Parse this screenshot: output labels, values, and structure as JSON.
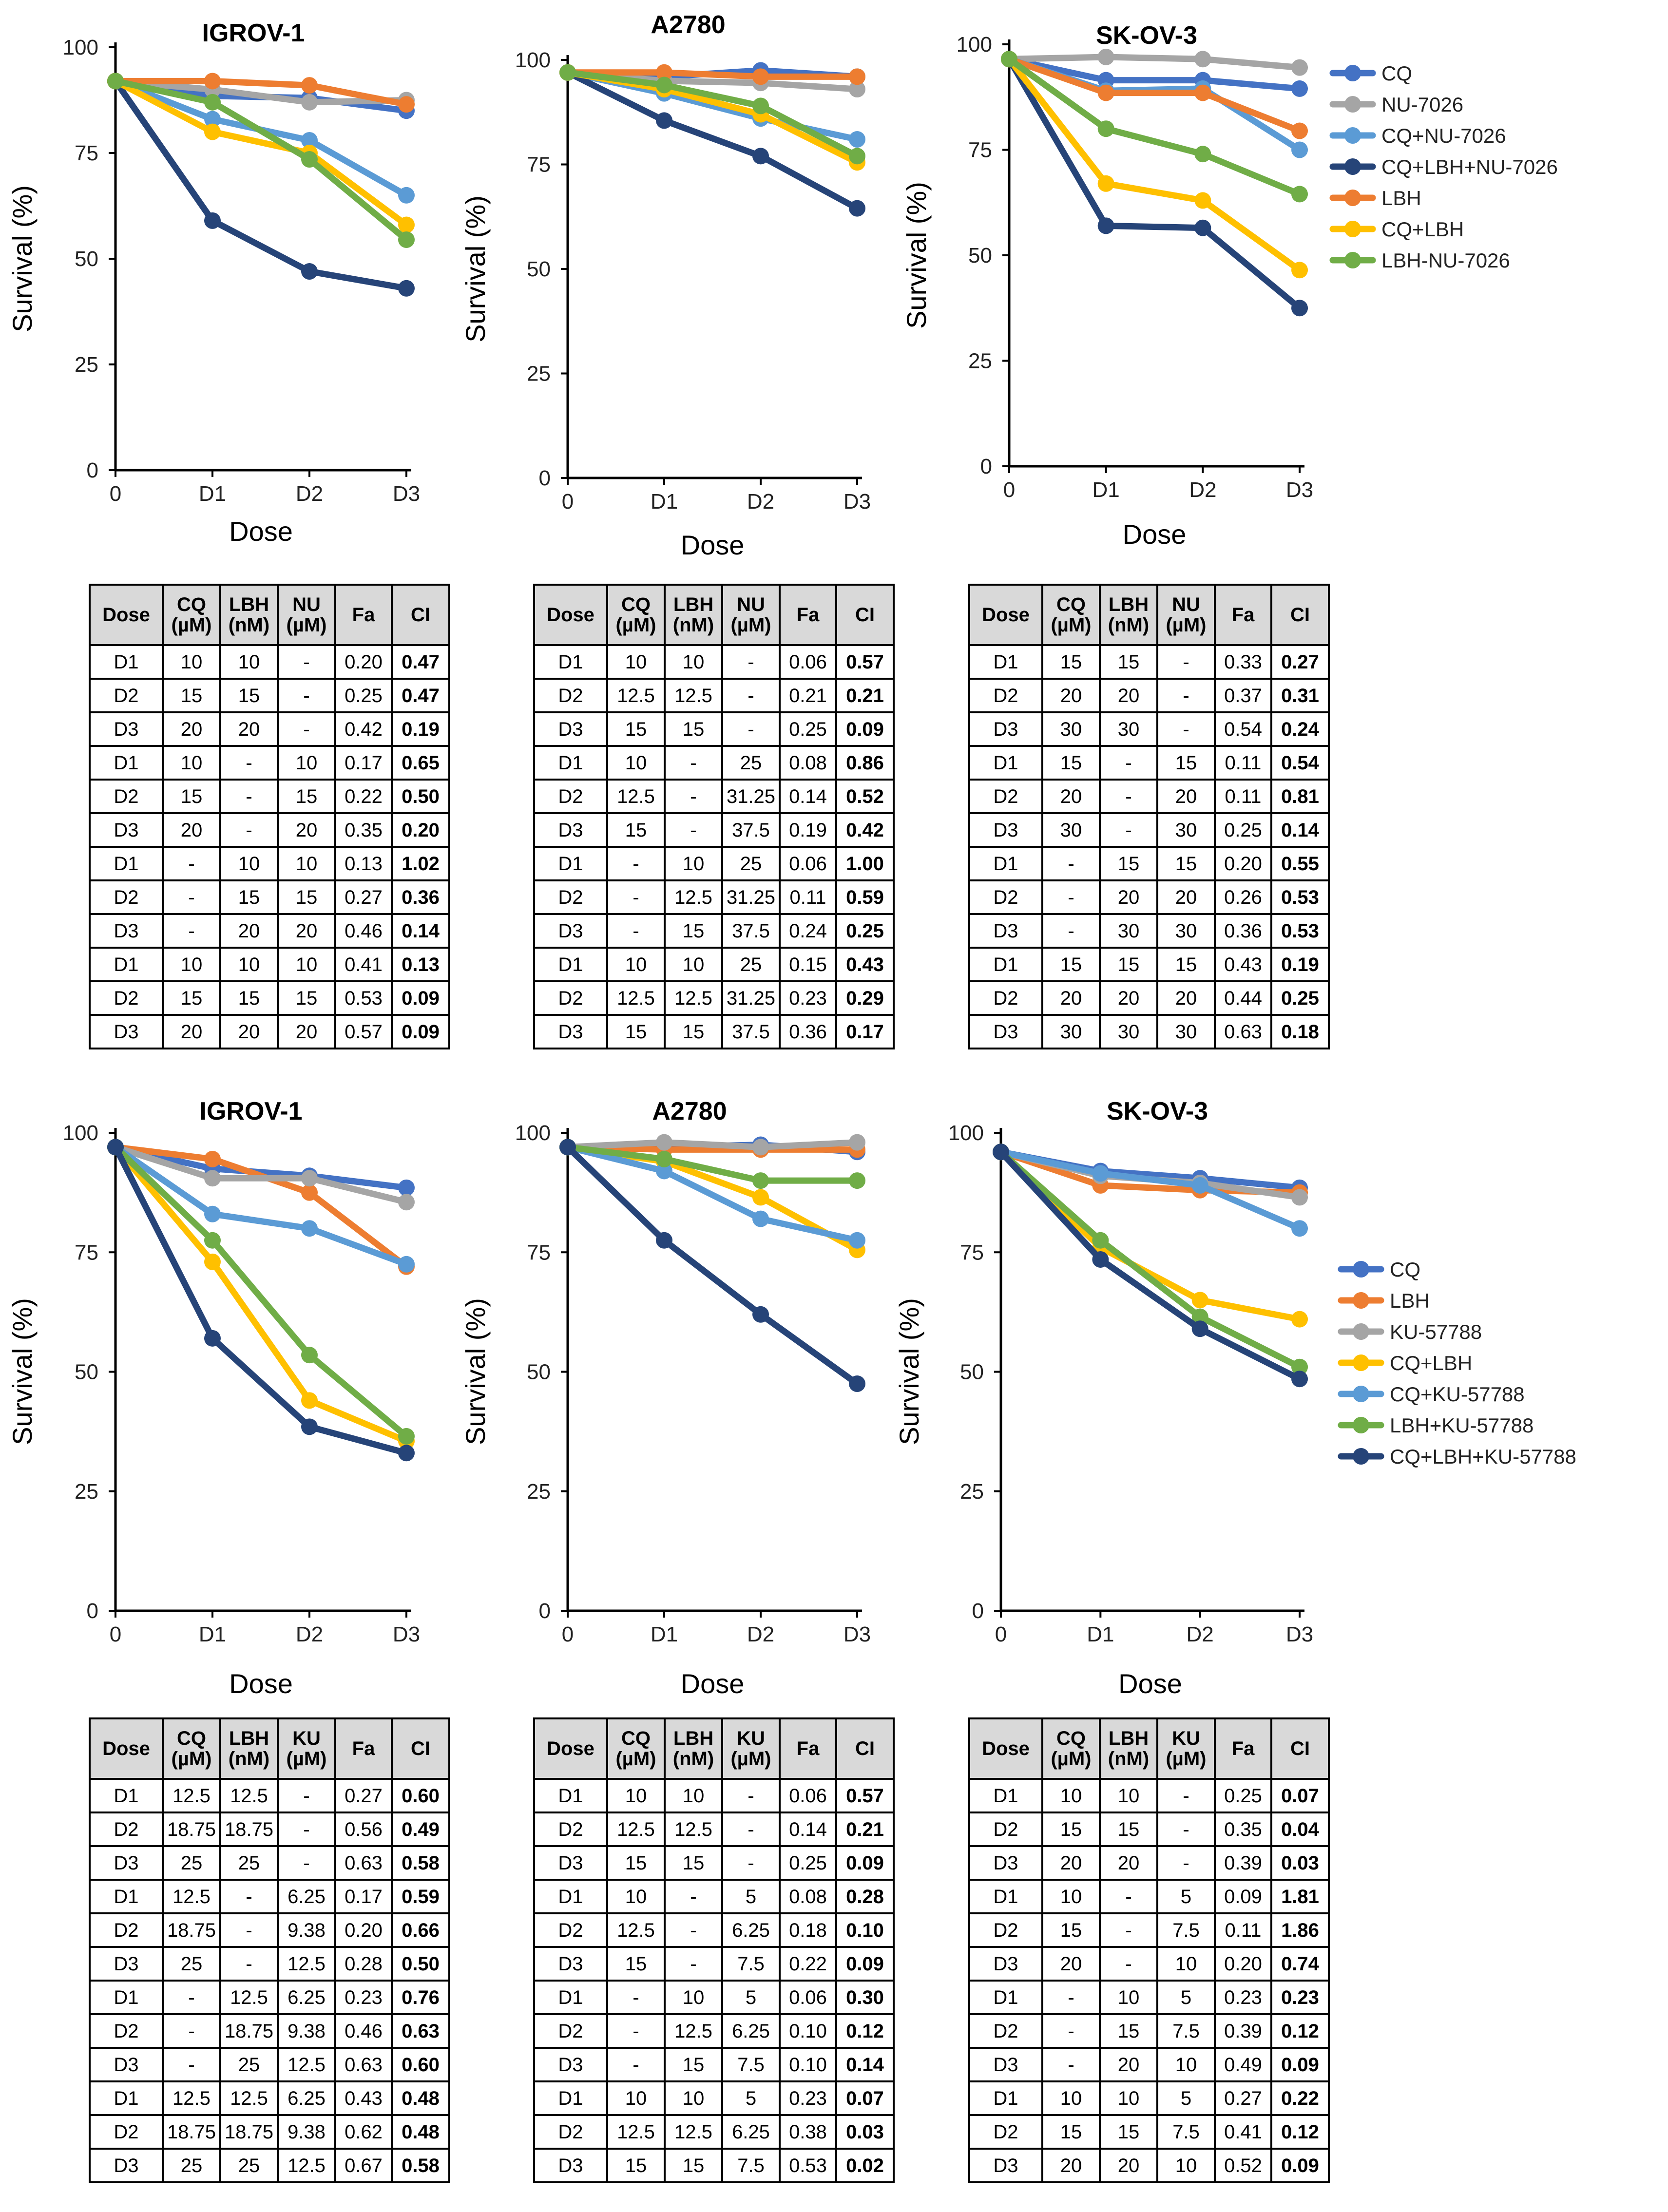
{
  "chart_data": [
    {
      "type": "line",
      "title": "IGROV-1",
      "xlabel": "Dose",
      "ylabel": "Survival (%)",
      "categories": [
        "0",
        "D1",
        "D2",
        "D3"
      ],
      "ylim": [
        0,
        100
      ],
      "yticks": [
        "0",
        "25",
        "50",
        "75",
        "100"
      ],
      "series": [
        {
          "name": "CQ",
          "color": "#4472C4",
          "values": [
            92,
            88.5,
            88,
            85
          ]
        },
        {
          "name": "NU-7026",
          "color": "#A5A5A5",
          "values": [
            92,
            90,
            87,
            87.5
          ]
        },
        {
          "name": "CQ+NU-7026",
          "color": "#5B9BD5",
          "values": [
            92,
            83,
            78,
            65
          ]
        },
        {
          "name": "CQ+LBH+NU-7026",
          "color": "#264478",
          "values": [
            92,
            59,
            47,
            43
          ]
        },
        {
          "name": "LBH",
          "color": "#ED7D31",
          "values": [
            92,
            92,
            91,
            86.5
          ]
        },
        {
          "name": "CQ+LBH",
          "color": "#FFC000",
          "values": [
            92,
            80,
            75,
            58
          ]
        },
        {
          "name": "LBH-NU-7026",
          "color": "#70AD47",
          "values": [
            92,
            87,
            73.5,
            54.5
          ]
        }
      ]
    },
    {
      "type": "line",
      "title": "A2780",
      "xlabel": "Dose",
      "ylabel": "Survival (%)",
      "categories": [
        "0",
        "D1",
        "D2",
        "D3"
      ],
      "ylim": [
        0,
        100
      ],
      "yticks": [
        "0",
        "25",
        "50",
        "75",
        "100"
      ],
      "series": [
        {
          "name": "CQ",
          "color": "#4472C4",
          "values": [
            97,
            96,
            97.5,
            96
          ]
        },
        {
          "name": "NU-7026",
          "color": "#A5A5A5",
          "values": [
            97,
            95,
            94.5,
            93
          ]
        },
        {
          "name": "CQ+NU-7026",
          "color": "#5B9BD5",
          "values": [
            97,
            92,
            86,
            81
          ]
        },
        {
          "name": "CQ+LBH+NU-7026",
          "color": "#264478",
          "values": [
            97,
            85.5,
            77,
            64.5
          ]
        },
        {
          "name": "LBH",
          "color": "#ED7D31",
          "values": [
            97,
            97,
            96,
            96
          ]
        },
        {
          "name": "CQ+LBH",
          "color": "#FFC000",
          "values": [
            97,
            93,
            87,
            75.5
          ]
        },
        {
          "name": "LBH-NU-7026",
          "color": "#70AD47",
          "values": [
            97,
            94,
            89,
            77
          ]
        }
      ]
    },
    {
      "type": "line",
      "title": "SK-OV-3",
      "xlabel": "Dose",
      "ylabel": "Survival (%)",
      "categories": [
        "0",
        "D1",
        "D2",
        "D3"
      ],
      "ylim": [
        0,
        100
      ],
      "yticks": [
        "0",
        "25",
        "50",
        "75",
        "100"
      ],
      "legend": "right",
      "series": [
        {
          "name": "CQ",
          "color": "#4472C4",
          "values": [
            96.5,
            91.5,
            91.5,
            89.5
          ]
        },
        {
          "name": "NU-7026",
          "color": "#A5A5A5",
          "values": [
            96.5,
            97,
            96.5,
            94.5
          ]
        },
        {
          "name": "CQ+NU-7026",
          "color": "#5B9BD5",
          "values": [
            96.5,
            89,
            89.5,
            75
          ]
        },
        {
          "name": "CQ+LBH+NU-7026",
          "color": "#264478",
          "values": [
            96.5,
            57,
            56.5,
            37.5
          ]
        },
        {
          "name": "LBH",
          "color": "#ED7D31",
          "values": [
            96.5,
            88.5,
            88.5,
            79.5
          ]
        },
        {
          "name": "CQ+LBH",
          "color": "#FFC000",
          "values": [
            96.5,
            67,
            63,
            46.5
          ]
        },
        {
          "name": "LBH-NU-7026",
          "color": "#70AD47",
          "values": [
            96.5,
            80,
            74,
            64.5
          ]
        }
      ]
    },
    {
      "type": "line",
      "title": "IGROV-1",
      "xlabel": "Dose",
      "ylabel": "Survival (%)",
      "categories": [
        "0",
        "D1",
        "D2",
        "D3"
      ],
      "ylim": [
        0,
        100
      ],
      "yticks": [
        "0",
        "25",
        "50",
        "75",
        "100"
      ],
      "series": [
        {
          "name": "CQ",
          "color": "#4472C4",
          "values": [
            97,
            92.5,
            91,
            88.5
          ]
        },
        {
          "name": "LBH",
          "color": "#ED7D31",
          "values": [
            97,
            94.5,
            87.5,
            72
          ]
        },
        {
          "name": "KU-57788",
          "color": "#A5A5A5",
          "values": [
            97,
            90.5,
            90.5,
            85.5
          ]
        },
        {
          "name": "CQ+LBH",
          "color": "#FFC000",
          "values": [
            97,
            73,
            44,
            35.5
          ]
        },
        {
          "name": "CQ+KU-57788",
          "color": "#5B9BD5",
          "values": [
            97,
            83,
            80,
            72.5
          ]
        },
        {
          "name": "LBH+KU-57788",
          "color": "#70AD47",
          "values": [
            97,
            77.5,
            53.5,
            36.5
          ]
        },
        {
          "name": "CQ+LBH+KU-57788",
          "color": "#264478",
          "values": [
            97,
            57,
            38.5,
            33
          ]
        }
      ]
    },
    {
      "type": "line",
      "title": "A2780",
      "xlabel": "Dose",
      "ylabel": "Survival (%)",
      "categories": [
        "0",
        "D1",
        "D2",
        "D3"
      ],
      "ylim": [
        0,
        100
      ],
      "yticks": [
        "0",
        "25",
        "50",
        "75",
        "100"
      ],
      "series": [
        {
          "name": "CQ",
          "color": "#4472C4",
          "values": [
            97,
            97,
            97.5,
            96
          ]
        },
        {
          "name": "LBH",
          "color": "#ED7D31",
          "values": [
            97,
            96.5,
            96.5,
            96.5
          ]
        },
        {
          "name": "KU-57788",
          "color": "#A5A5A5",
          "values": [
            97,
            98,
            97,
            98
          ]
        },
        {
          "name": "CQ+LBH",
          "color": "#FFC000",
          "values": [
            97,
            94,
            86.5,
            75.5
          ]
        },
        {
          "name": "CQ+KU-57788",
          "color": "#5B9BD5",
          "values": [
            97,
            92,
            82,
            77.5
          ]
        },
        {
          "name": "LBH+KU-57788",
          "color": "#70AD47",
          "values": [
            97,
            94.5,
            90,
            90
          ]
        },
        {
          "name": "CQ+LBH+KU-57788",
          "color": "#264478",
          "values": [
            97,
            77.5,
            62,
            47.5
          ]
        }
      ]
    },
    {
      "type": "line",
      "title": "SK-OV-3",
      "xlabel": "Dose",
      "ylabel": "Survival (%)",
      "categories": [
        "0",
        "D1",
        "D2",
        "D3"
      ],
      "ylim": [
        0,
        100
      ],
      "yticks": [
        "0",
        "25",
        "50",
        "75",
        "100"
      ],
      "legend": "right",
      "series": [
        {
          "name": "CQ",
          "color": "#4472C4",
          "values": [
            96,
            92,
            90.5,
            88.5
          ]
        },
        {
          "name": "LBH",
          "color": "#ED7D31",
          "values": [
            96,
            89,
            88,
            87.5
          ]
        },
        {
          "name": "KU-57788",
          "color": "#A5A5A5",
          "values": [
            96,
            91,
            89.5,
            86.5
          ]
        },
        {
          "name": "CQ+LBH",
          "color": "#FFC000",
          "values": [
            96,
            76,
            65,
            61
          ]
        },
        {
          "name": "CQ+KU-57788",
          "color": "#5B9BD5",
          "values": [
            96,
            91.5,
            89,
            80
          ]
        },
        {
          "name": "LBH+KU-57788",
          "color": "#70AD47",
          "values": [
            96,
            77.5,
            61.5,
            51
          ]
        },
        {
          "name": "CQ+LBH+KU-57788",
          "color": "#264478",
          "values": [
            96,
            73.5,
            59,
            48.5
          ]
        }
      ]
    }
  ],
  "tables": [
    {
      "headers": [
        "Dose",
        "CQ (µM)",
        "LBH (nM)",
        "NU (µM)",
        "Fa",
        "CI"
      ],
      "rows": [
        [
          "D1",
          "10",
          "10",
          "-",
          "0.20",
          "0.47"
        ],
        [
          "D2",
          "15",
          "15",
          "-",
          "0.25",
          "0.47"
        ],
        [
          "D3",
          "20",
          "20",
          "-",
          "0.42",
          "0.19"
        ],
        [
          "D1",
          "10",
          "-",
          "10",
          "0.17",
          "0.65"
        ],
        [
          "D2",
          "15",
          "-",
          "15",
          "0.22",
          "0.50"
        ],
        [
          "D3",
          "20",
          "-",
          "20",
          "0.35",
          "0.20"
        ],
        [
          "D1",
          "-",
          "10",
          "10",
          "0.13",
          "1.02"
        ],
        [
          "D2",
          "-",
          "15",
          "15",
          "0.27",
          "0.36"
        ],
        [
          "D3",
          "-",
          "20",
          "20",
          "0.46",
          "0.14"
        ],
        [
          "D1",
          "10",
          "10",
          "10",
          "0.41",
          "0.13"
        ],
        [
          "D2",
          "15",
          "15",
          "15",
          "0.53",
          "0.09"
        ],
        [
          "D3",
          "20",
          "20",
          "20",
          "0.57",
          "0.09"
        ]
      ]
    },
    {
      "headers": [
        "Dose",
        "CQ (µM)",
        "LBH (nM)",
        "NU (µM)",
        "Fa",
        "CI"
      ],
      "rows": [
        [
          "D1",
          "10",
          "10",
          "-",
          "0.06",
          "0.57"
        ],
        [
          "D2",
          "12.5",
          "12.5",
          "-",
          "0.21",
          "0.21"
        ],
        [
          "D3",
          "15",
          "15",
          "-",
          "0.25",
          "0.09"
        ],
        [
          "D1",
          "10",
          "-",
          "25",
          "0.08",
          "0.86"
        ],
        [
          "D2",
          "12.5",
          "-",
          "31.25",
          "0.14",
          "0.52"
        ],
        [
          "D3",
          "15",
          "-",
          "37.5",
          "0.19",
          "0.42"
        ],
        [
          "D1",
          "-",
          "10",
          "25",
          "0.06",
          "1.00"
        ],
        [
          "D2",
          "-",
          "12.5",
          "31.25",
          "0.11",
          "0.59"
        ],
        [
          "D3",
          "-",
          "15",
          "37.5",
          "0.24",
          "0.25"
        ],
        [
          "D1",
          "10",
          "10",
          "25",
          "0.15",
          "0.43"
        ],
        [
          "D2",
          "12.5",
          "12.5",
          "31.25",
          "0.23",
          "0.29"
        ],
        [
          "D3",
          "15",
          "15",
          "37.5",
          "0.36",
          "0.17"
        ]
      ]
    },
    {
      "headers": [
        "Dose",
        "CQ (µM)",
        "LBH (nM)",
        "NU (µM)",
        "Fa",
        "CI"
      ],
      "rows": [
        [
          "D1",
          "15",
          "15",
          "-",
          "0.33",
          "0.27"
        ],
        [
          "D2",
          "20",
          "20",
          "-",
          "0.37",
          "0.31"
        ],
        [
          "D3",
          "30",
          "30",
          "-",
          "0.54",
          "0.24"
        ],
        [
          "D1",
          "15",
          "-",
          "15",
          "0.11",
          "0.54"
        ],
        [
          "D2",
          "20",
          "-",
          "20",
          "0.11",
          "0.81"
        ],
        [
          "D3",
          "30",
          "-",
          "30",
          "0.25",
          "0.14"
        ],
        [
          "D1",
          "-",
          "15",
          "15",
          "0.20",
          "0.55"
        ],
        [
          "D2",
          "-",
          "20",
          "20",
          "0.26",
          "0.53"
        ],
        [
          "D3",
          "-",
          "30",
          "30",
          "0.36",
          "0.53"
        ],
        [
          "D1",
          "15",
          "15",
          "15",
          "0.43",
          "0.19"
        ],
        [
          "D2",
          "20",
          "20",
          "20",
          "0.44",
          "0.25"
        ],
        [
          "D3",
          "30",
          "30",
          "30",
          "0.63",
          "0.18"
        ]
      ]
    },
    {
      "headers": [
        "Dose",
        "CQ (µM)",
        "LBH (nM)",
        "KU (µM)",
        "Fa",
        "CI"
      ],
      "rows": [
        [
          "D1",
          "12.5",
          "12.5",
          "-",
          "0.27",
          "0.60"
        ],
        [
          "D2",
          "18.75",
          "18.75",
          "-",
          "0.56",
          "0.49"
        ],
        [
          "D3",
          "25",
          "25",
          "-",
          "0.63",
          "0.58"
        ],
        [
          "D1",
          "12.5",
          "-",
          "6.25",
          "0.17",
          "0.59"
        ],
        [
          "D2",
          "18.75",
          "-",
          "9.38",
          "0.20",
          "0.66"
        ],
        [
          "D3",
          "25",
          "-",
          "12.5",
          "0.28",
          "0.50"
        ],
        [
          "D1",
          "-",
          "12.5",
          "6.25",
          "0.23",
          "0.76"
        ],
        [
          "D2",
          "-",
          "18.75",
          "9.38",
          "0.46",
          "0.63"
        ],
        [
          "D3",
          "-",
          "25",
          "12.5",
          "0.63",
          "0.60"
        ],
        [
          "D1",
          "12.5",
          "12.5",
          "6.25",
          "0.43",
          "0.48"
        ],
        [
          "D2",
          "18.75",
          "18.75",
          "9.38",
          "0.62",
          "0.48"
        ],
        [
          "D3",
          "25",
          "25",
          "12.5",
          "0.67",
          "0.58"
        ]
      ]
    },
    {
      "headers": [
        "Dose",
        "CQ (µM)",
        "LBH (nM)",
        "KU (µM)",
        "Fa",
        "CI"
      ],
      "rows": [
        [
          "D1",
          "10",
          "10",
          "-",
          "0.06",
          "0.57"
        ],
        [
          "D2",
          "12.5",
          "12.5",
          "-",
          "0.14",
          "0.21"
        ],
        [
          "D3",
          "15",
          "15",
          "-",
          "0.25",
          "0.09"
        ],
        [
          "D1",
          "10",
          "-",
          "5",
          "0.08",
          "0.28"
        ],
        [
          "D2",
          "12.5",
          "-",
          "6.25",
          "0.18",
          "0.10"
        ],
        [
          "D3",
          "15",
          "-",
          "7.5",
          "0.22",
          "0.09"
        ],
        [
          "D1",
          "-",
          "10",
          "5",
          "0.06",
          "0.30"
        ],
        [
          "D2",
          "-",
          "12.5",
          "6.25",
          "0.10",
          "0.12"
        ],
        [
          "D3",
          "-",
          "15",
          "7.5",
          "0.10",
          "0.14"
        ],
        [
          "D1",
          "10",
          "10",
          "5",
          "0.23",
          "0.07"
        ],
        [
          "D2",
          "12.5",
          "12.5",
          "6.25",
          "0.38",
          "0.03"
        ],
        [
          "D3",
          "15",
          "15",
          "7.5",
          "0.53",
          "0.02"
        ]
      ]
    },
    {
      "headers": [
        "Dose",
        "CQ (µM)",
        "LBH (nM)",
        "KU (µM)",
        "Fa",
        "CI"
      ],
      "rows": [
        [
          "D1",
          "10",
          "10",
          "-",
          "0.25",
          "0.07"
        ],
        [
          "D2",
          "15",
          "15",
          "-",
          "0.35",
          "0.04"
        ],
        [
          "D3",
          "20",
          "20",
          "-",
          "0.39",
          "0.03"
        ],
        [
          "D1",
          "10",
          "-",
          "5",
          "0.09",
          "1.81"
        ],
        [
          "D2",
          "15",
          "-",
          "7.5",
          "0.11",
          "1.86"
        ],
        [
          "D3",
          "20",
          "-",
          "10",
          "0.20",
          "0.74"
        ],
        [
          "D1",
          "-",
          "10",
          "5",
          "0.23",
          "0.23"
        ],
        [
          "D2",
          "-",
          "15",
          "7.5",
          "0.39",
          "0.12"
        ],
        [
          "D3",
          "-",
          "20",
          "10",
          "0.49",
          "0.09"
        ],
        [
          "D1",
          "10",
          "10",
          "5",
          "0.27",
          "0.22"
        ],
        [
          "D2",
          "15",
          "15",
          "7.5",
          "0.41",
          "0.12"
        ],
        [
          "D3",
          "20",
          "20",
          "10",
          "0.52",
          "0.09"
        ]
      ]
    }
  ]
}
